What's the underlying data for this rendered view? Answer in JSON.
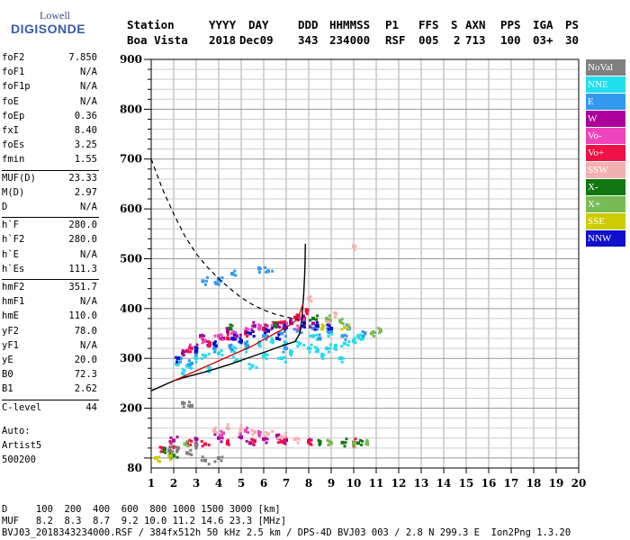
{
  "logo": {
    "line1": "Lowell",
    "line2": "DIGISONDE"
  },
  "header": {
    "labels": [
      "Station",
      "YYYY",
      "DAY",
      "DDD",
      "HHMMSS",
      "P1",
      "FFS",
      "S",
      "AXN",
      "PPS",
      "IGA",
      "PS"
    ],
    "values": [
      "Boa Vista",
      "2018",
      "Dec09",
      "343",
      "234000",
      "RSF",
      "005",
      "2",
      "713",
      "100",
      "03+",
      "30"
    ]
  },
  "params": {
    "group1": [
      {
        "k": "foF2",
        "v": "7.850"
      },
      {
        "k": "foF1",
        "v": "N/A"
      },
      {
        "k": "foF1p",
        "v": "N/A"
      },
      {
        "k": "foE",
        "v": "N/A"
      },
      {
        "k": "foEp",
        "v": "0.36"
      },
      {
        "k": "fxI",
        "v": "8.40"
      },
      {
        "k": "foEs",
        "v": "3.25"
      },
      {
        "k": "fmin",
        "v": "1.55"
      }
    ],
    "group2": [
      {
        "k": "MUF(D)",
        "v": "23.33"
      },
      {
        "k": "M(D)",
        "v": "2.97"
      },
      {
        "k": "D",
        "v": "N/A"
      }
    ],
    "group3": [
      {
        "k": "h`F",
        "v": "280.0"
      },
      {
        "k": "h`F2",
        "v": "280.0"
      },
      {
        "k": "h`E",
        "v": "N/A"
      },
      {
        "k": "h`Es",
        "v": "111.3"
      }
    ],
    "group4": [
      {
        "k": "hmF2",
        "v": "351.7"
      },
      {
        "k": "hmF1",
        "v": "N/A"
      },
      {
        "k": "hmE",
        "v": "110.0"
      },
      {
        "k": "yF2",
        "v": "78.0"
      },
      {
        "k": "yF1",
        "v": "N/A"
      },
      {
        "k": "yE",
        "v": "20.0"
      },
      {
        "k": "B0",
        "v": "72.3"
      },
      {
        "k": "B1",
        "v": "2.62"
      }
    ],
    "group5": [
      {
        "k": "C-level",
        "v": "44"
      }
    ]
  },
  "auto": [
    "Auto:",
    "Artist5",
    "500200"
  ],
  "footer": {
    "d_line": "D     100  200  400  600  800 1000 1500 3000 [km]",
    "muf_line": "MUF   8.2  8.3  8.7  9.2 10.0 11.2 14.6 23.3 [MHz]",
    "file_line": "BVJ03_2018343234000.RSF / 384fx512h 50 kHz 2.5 km / DPS-4D BVJ03 003 / 2.8 N 299.3 E  Ion2Png 1.3.20"
  },
  "legend": [
    {
      "label": "NoVal",
      "color": "#808080"
    },
    {
      "label": "NNE",
      "color": "#22ddee"
    },
    {
      "label": "E",
      "color": "#3399ee"
    },
    {
      "label": "W",
      "color": "#aa0099"
    },
    {
      "label": "Vo-",
      "color": "#ee44bb"
    },
    {
      "label": "Vo+",
      "color": "#ee1144"
    },
    {
      "label": "SSW",
      "color": "#f4b0b0"
    },
    {
      "label": "X-",
      "color": "#117711"
    },
    {
      "label": "X+",
      "color": "#77bb55"
    },
    {
      "label": "SSE",
      "color": "#cccc00"
    },
    {
      "label": "NNW",
      "color": "#1111cc"
    }
  ],
  "chart_data": {
    "type": "scatter",
    "xlim": [
      1,
      20
    ],
    "ylim": [
      80,
      900
    ],
    "x_ticks": [
      1,
      2,
      3,
      4,
      5,
      6,
      7,
      8,
      9,
      10,
      11,
      12,
      13,
      14,
      15,
      16,
      17,
      18,
      19,
      20
    ],
    "y_ticks": [
      80,
      200,
      300,
      400,
      500,
      600,
      700,
      800,
      900
    ],
    "grid": true,
    "series": [
      {
        "name": "NNE",
        "color": "#22ddee",
        "points": [
          [
            2.2,
            290
          ],
          [
            2.6,
            285
          ],
          [
            3.0,
            300
          ],
          [
            3.4,
            305
          ],
          [
            4.0,
            310
          ],
          [
            4.6,
            315
          ],
          [
            5.2,
            320
          ],
          [
            5.8,
            330
          ],
          [
            6.4,
            335
          ],
          [
            7.0,
            330
          ],
          [
            7.6,
            330
          ],
          [
            8.0,
            320
          ],
          [
            8.4,
            315
          ],
          [
            8.8,
            320
          ],
          [
            9.2,
            325
          ],
          [
            9.6,
            330
          ],
          [
            10.0,
            335
          ],
          [
            10.4,
            340
          ],
          [
            2.4,
            270
          ],
          [
            3.6,
            280
          ],
          [
            4.8,
            295
          ],
          [
            6.0,
            305
          ],
          [
            7.2,
            310
          ],
          [
            8.6,
            305
          ],
          [
            9.4,
            300
          ],
          [
            10.2,
            345
          ],
          [
            5.5,
            285
          ],
          [
            6.8,
            300
          ],
          [
            8.2,
            345
          ],
          [
            9.0,
            350
          ]
        ]
      },
      {
        "name": "E",
        "color": "#3399ee",
        "points": [
          [
            2.3,
            300
          ],
          [
            3.0,
            310
          ],
          [
            3.8,
            320
          ],
          [
            4.5,
            325
          ],
          [
            5.2,
            330
          ],
          [
            6.0,
            345
          ],
          [
            6.8,
            350
          ],
          [
            7.5,
            355
          ],
          [
            8.2,
            360
          ],
          [
            9.0,
            355
          ],
          [
            9.8,
            360
          ],
          [
            10.5,
            350
          ],
          [
            4.0,
            460
          ],
          [
            4.6,
            470
          ],
          [
            5.8,
            480
          ],
          [
            6.2,
            475
          ],
          [
            2.8,
            290
          ],
          [
            7.0,
            320
          ],
          [
            8.5,
            340
          ],
          [
            9.5,
            345
          ],
          [
            3.3,
            455
          ],
          [
            3.9,
            450
          ]
        ]
      },
      {
        "name": "W",
        "color": "#aa0099",
        "points": [
          [
            2.4,
            310
          ],
          [
            3.0,
            320
          ],
          [
            3.6,
            330
          ],
          [
            4.2,
            340
          ],
          [
            4.8,
            345
          ],
          [
            5.4,
            350
          ],
          [
            6.0,
            360
          ],
          [
            6.6,
            370
          ],
          [
            7.2,
            375
          ],
          [
            7.8,
            380
          ],
          [
            8.2,
            370
          ],
          [
            3.2,
            345
          ],
          [
            4.4,
            355
          ],
          [
            5.6,
            365
          ],
          [
            2.0,
            135
          ],
          [
            3.0,
            138
          ],
          [
            4.0,
            140
          ],
          [
            5.0,
            142
          ],
          [
            6.0,
            138
          ],
          [
            7.0,
            136
          ],
          [
            8.0,
            134
          ],
          [
            6.6,
            145
          ],
          [
            5.4,
            130
          ]
        ]
      },
      {
        "name": "Vo-",
        "color": "#ee44bb",
        "points": [
          [
            2.8,
            320
          ],
          [
            3.4,
            335
          ],
          [
            4.0,
            345
          ],
          [
            4.6,
            350
          ],
          [
            5.2,
            355
          ],
          [
            5.8,
            360
          ],
          [
            6.4,
            365
          ],
          [
            7.0,
            370
          ],
          [
            7.6,
            380
          ],
          [
            4.2,
            150
          ],
          [
            5.2,
            155
          ],
          [
            5.8,
            148
          ],
          [
            7.6,
            360
          ]
        ]
      },
      {
        "name": "Vo+",
        "color": "#ee1144",
        "points": [
          [
            2.6,
            315
          ],
          [
            3.6,
            328
          ],
          [
            4.4,
            340
          ],
          [
            5.2,
            350
          ],
          [
            6.0,
            358
          ],
          [
            6.8,
            372
          ],
          [
            7.4,
            382
          ],
          [
            7.9,
            395
          ],
          [
            1.5,
            120
          ],
          [
            2.0,
            122
          ],
          [
            2.6,
            130
          ],
          [
            3.4,
            128
          ],
          [
            4.4,
            132
          ],
          [
            5.6,
            134
          ],
          [
            6.8,
            133
          ],
          [
            8.0,
            132
          ],
          [
            9.0,
            130
          ],
          [
            10.0,
            131
          ]
        ]
      },
      {
        "name": "SSW",
        "color": "#f4b0b0",
        "points": [
          [
            3.8,
            155
          ],
          [
            4.4,
            160
          ],
          [
            5.0,
            158
          ],
          [
            5.6,
            152
          ],
          [
            6.2,
            148
          ],
          [
            6.8,
            142
          ],
          [
            7.4,
            138
          ],
          [
            8.8,
            375
          ],
          [
            9.2,
            390
          ],
          [
            8.0,
            420
          ],
          [
            10.0,
            525
          ]
        ]
      },
      {
        "name": "X-",
        "color": "#117711",
        "points": [
          [
            1.6,
            118
          ],
          [
            2.2,
            120
          ],
          [
            8.5,
            130
          ],
          [
            9.5,
            131
          ],
          [
            10.2,
            130
          ],
          [
            2.0,
            105
          ],
          [
            4.5,
            360
          ],
          [
            6.5,
            370
          ],
          [
            8.2,
            380
          ]
        ]
      },
      {
        "name": "X+",
        "color": "#77bb55",
        "points": [
          [
            9.0,
            130
          ],
          [
            10.0,
            129
          ],
          [
            10.6,
            132
          ],
          [
            8.8,
            380
          ],
          [
            9.4,
            375
          ],
          [
            11.2,
            355
          ],
          [
            10.8,
            350
          ],
          [
            2.5,
            128
          ]
        ]
      },
      {
        "name": "SSE",
        "color": "#cccc00",
        "points": [
          [
            1.2,
            100
          ],
          [
            1.8,
            104
          ],
          [
            8.6,
            360
          ],
          [
            9.6,
            362
          ]
        ]
      },
      {
        "name": "NNW",
        "color": "#1111cc",
        "points": [
          [
            2.2,
            300
          ],
          [
            3.0,
            315
          ],
          [
            3.8,
            330
          ],
          [
            4.6,
            340
          ],
          [
            5.4,
            350
          ],
          [
            6.2,
            355
          ],
          [
            7.0,
            362
          ],
          [
            7.8,
            370
          ],
          [
            8.4,
            365
          ],
          [
            9.0,
            360
          ],
          [
            6.6,
            340
          ],
          [
            5.0,
            335
          ]
        ]
      },
      {
        "name": "NoVal",
        "color": "#808080",
        "points": [
          [
            2.2,
            120
          ],
          [
            2.6,
            110
          ],
          [
            3.0,
            125
          ],
          [
            3.4,
            95
          ],
          [
            4.0,
            100
          ],
          [
            2.4,
            210
          ],
          [
            2.8,
            205
          ],
          [
            1.8,
            115
          ]
        ]
      }
    ],
    "profile_dashed": [
      [
        1.0,
        700
      ],
      [
        1.5,
        640
      ],
      [
        2.0,
        590
      ],
      [
        2.5,
        545
      ],
      [
        3.0,
        510
      ],
      [
        3.5,
        483
      ],
      [
        4.0,
        460
      ],
      [
        4.5,
        440
      ],
      [
        5.0,
        422
      ],
      [
        5.5,
        408
      ],
      [
        6.0,
        397
      ],
      [
        6.5,
        389
      ],
      [
        7.0,
        383
      ],
      [
        7.5,
        378
      ],
      [
        7.85,
        370
      ]
    ],
    "trace_solid": [
      [
        1.0,
        235
      ],
      [
        2.0,
        255
      ],
      [
        2.5,
        262
      ],
      [
        3.0,
        268
      ],
      [
        3.5,
        274
      ],
      [
        4.0,
        281
      ],
      [
        4.5,
        288
      ],
      [
        5.0,
        296
      ],
      [
        5.5,
        304
      ],
      [
        6.0,
        312
      ],
      [
        6.5,
        320
      ],
      [
        7.0,
        328
      ],
      [
        7.4,
        334
      ],
      [
        7.6,
        350
      ],
      [
        7.7,
        380
      ],
      [
        7.78,
        430
      ],
      [
        7.83,
        480
      ],
      [
        7.85,
        530
      ]
    ],
    "trace_o": [
      [
        2.0,
        255
      ],
      [
        2.5,
        265
      ],
      [
        3.0,
        275
      ],
      [
        3.5,
        285
      ],
      [
        4.0,
        295
      ],
      [
        4.5,
        305
      ],
      [
        5.0,
        315
      ],
      [
        5.5,
        325
      ],
      [
        6.0,
        338
      ],
      [
        6.5,
        350
      ],
      [
        7.0,
        362
      ],
      [
        7.4,
        375
      ],
      [
        7.6,
        390
      ],
      [
        7.75,
        410
      ]
    ]
  }
}
